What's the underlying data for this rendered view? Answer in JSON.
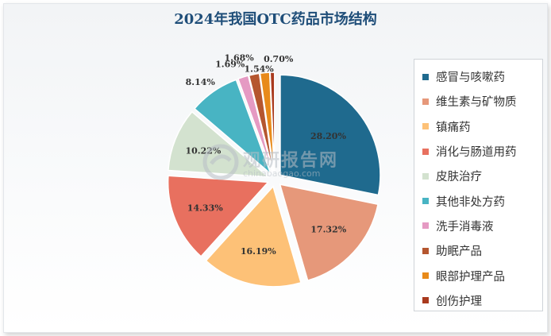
{
  "title": "2024年我国OTC药品市场结构",
  "watermark": {
    "name": "观研报告网",
    "url": "chinabaogao.com"
  },
  "chart_data": {
    "type": "pie",
    "title": "2024年我国OTC药品市场结构",
    "legend_position": "right",
    "slices": [
      {
        "name": "感冒与咳嗽药",
        "value": 28.2,
        "label": "28.20%",
        "color": "#1f6a8e"
      },
      {
        "name": "维生素与矿物质",
        "value": 17.32,
        "label": "17.32%",
        "color": "#e6987a"
      },
      {
        "name": "镇痛药",
        "value": 16.19,
        "label": "16.19%",
        "color": "#fdc177"
      },
      {
        "name": "消化与肠道用药",
        "value": 14.33,
        "label": "14.33%",
        "color": "#e8705f"
      },
      {
        "name": "皮肤治疗",
        "value": 10.22,
        "label": "10.22%",
        "color": "#d3e2cf"
      },
      {
        "name": "其他非处方药",
        "value": 8.14,
        "label": "8.14%",
        "color": "#48b4c3"
      },
      {
        "name": "洗手消毒液",
        "value": 1.69,
        "label": "1.69%",
        "color": "#e59ac3"
      },
      {
        "name": "助眠产品",
        "value": 1.68,
        "label": "1.68%",
        "color": "#b5562f"
      },
      {
        "name": "眼部护理产品",
        "value": 1.54,
        "label": "1.54%",
        "color": "#e88a1a"
      },
      {
        "name": "创伤护理",
        "value": 0.7,
        "label": "0.70%",
        "color": "#a93a1e"
      }
    ]
  }
}
